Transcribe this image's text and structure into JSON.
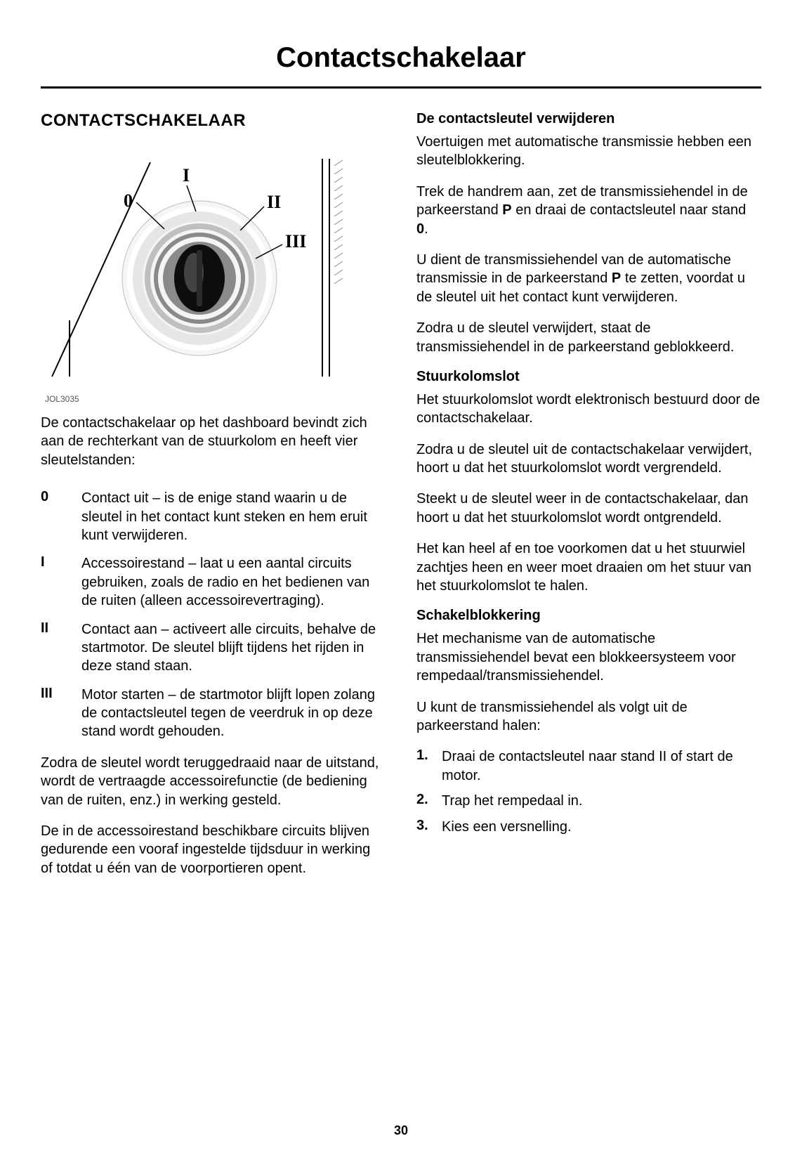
{
  "page_title": "Contactschakelaar",
  "page_number": "30",
  "left": {
    "section_title": "CONTACTSCHAKELAAR",
    "figure_code": "JOL3035",
    "intro": "De contactschakelaar op het dashboard bevindt zich aan de rechterkant van de stuurkolom en heeft vier sleutelstanden:",
    "positions": [
      {
        "key": "0",
        "text": "Contact uit – is de enige stand waarin u de sleutel in het contact kunt steken en hem eruit kunt verwijderen."
      },
      {
        "key": "I",
        "text": "Accessoirestand – laat u een aantal circuits gebruiken, zoals de radio en het bedienen van de ruiten (alleen accessoirevertraging)."
      },
      {
        "key": "II",
        "text": "Contact aan – activeert alle circuits, behalve de startmotor. De sleutel blijft tijdens het rijden in deze stand staan."
      },
      {
        "key": "III",
        "text": "Motor starten – de startmotor blijft lopen zolang de contactsleutel tegen de veerdruk in op deze stand wordt gehouden."
      }
    ],
    "para_after_1": "Zodra de sleutel wordt teruggedraaid naar de uitstand, wordt de vertraagde accessoirefunctie (de bediening van de ruiten, enz.) in werking gesteld.",
    "para_after_2": "De in de accessoirestand beschikbare circuits blijven gedurende een vooraf ingestelde tijdsduur in werking of totdat u één van de voorportieren opent."
  },
  "right": {
    "h1": "De contactsleutel verwijderen",
    "p1a": "Voertuigen met automatische transmissie hebben een sleutelblokkering.",
    "p1b_pre": "Trek de handrem aan, zet de transmissiehendel in de parkeerstand ",
    "p1b_b1": "P",
    "p1b_mid": " en draai de contactsleutel naar stand ",
    "p1b_b2": "0",
    "p1b_post": ".",
    "p1c_pre": "U dient de transmissiehendel van de automatische transmissie in de parkeerstand ",
    "p1c_b": "P",
    "p1c_post": " te zetten, voordat u de sleutel uit het contact kunt verwijderen.",
    "p1d": "Zodra u de sleutel verwijdert, staat de transmissiehendel in de parkeerstand geblokkeerd.",
    "h2": "Stuurkolomslot",
    "p2a": "Het stuurkolomslot wordt elektronisch bestuurd door de contactschakelaar.",
    "p2b": "Zodra u de sleutel uit de contactschakelaar verwijdert, hoort u dat het stuurkolomslot wordt vergrendeld.",
    "p2c": "Steekt u de sleutel weer in de contactschakelaar, dan hoort u dat het stuurkolomslot wordt ontgrendeld.",
    "p2d": "Het kan heel af en toe voorkomen dat u het stuurwiel zachtjes heen en weer moet draaien om het stuur van het stuurkolomslot te halen.",
    "h3": "Schakelblokkering",
    "p3a": "Het mechanisme van de automatische transmissiehendel bevat een blokkeersysteem voor rempedaal/transmissiehendel.",
    "p3b": "U kunt de transmissiehendel als volgt uit de parkeerstand halen:",
    "steps": [
      {
        "num": "1.",
        "pre": "Draai de contactsleutel naar stand ",
        "b": "II",
        "post": " of start de motor."
      },
      {
        "num": "2.",
        "pre": "Trap het rempedaal in.",
        "b": "",
        "post": ""
      },
      {
        "num": "3.",
        "pre": "Kies een versnelling.",
        "b": "",
        "post": ""
      }
    ]
  },
  "diagram": {
    "labels": {
      "zero": "0",
      "one": "I",
      "two": "II",
      "three": "III"
    },
    "colors": {
      "stroke": "#000000",
      "ring_light": "#e6e6e6",
      "ring_mid": "#bfbfbf",
      "ring_dark": "#8a8a8a",
      "knob_dark": "#0d0d0d",
      "knob_shine": "#707070",
      "hatch": "#888888"
    }
  }
}
